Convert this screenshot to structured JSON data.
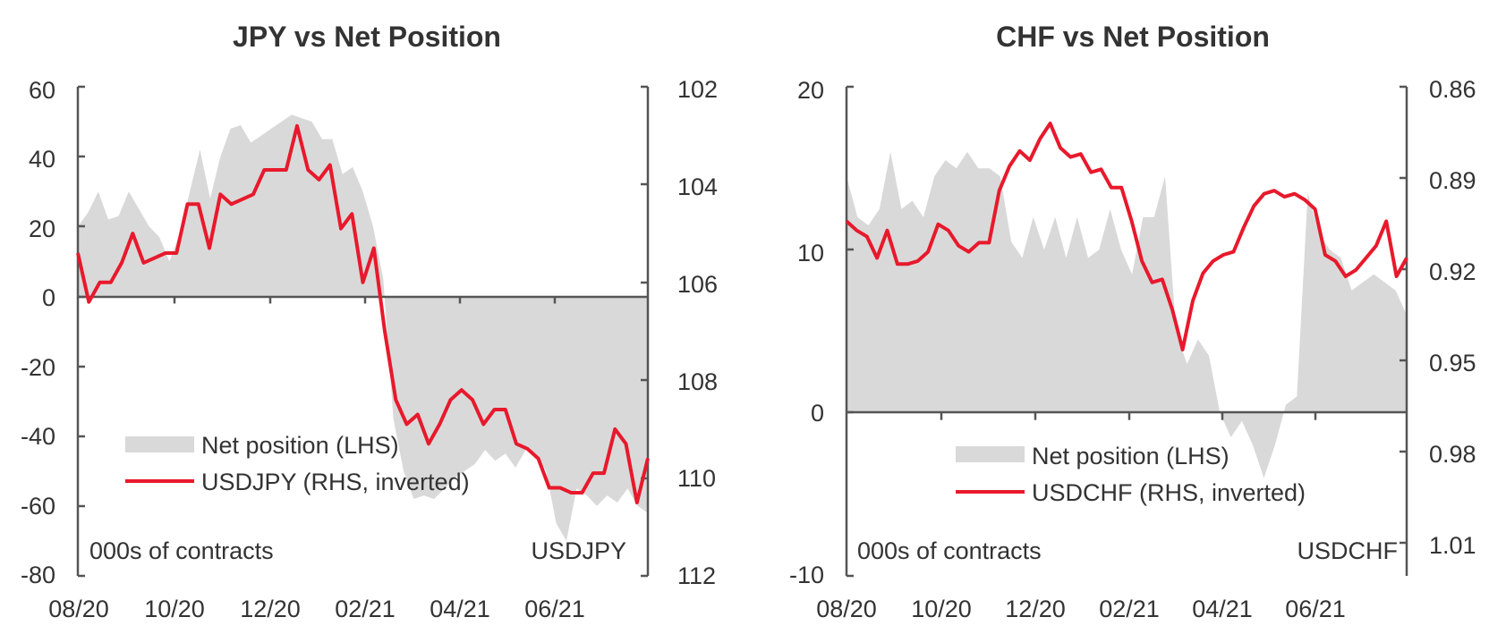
{
  "chart_data": [
    {
      "type": "area+line",
      "title": "JPY vs Net Position",
      "x_tick_labels": [
        "08/20",
        "10/20",
        "12/20",
        "02/21",
        "04/21",
        "06/21"
      ],
      "left_axis": {
        "ylim": [
          -80,
          60
        ],
        "ticks": [
          "60",
          "40",
          "20",
          "0",
          "-20",
          "-40",
          "-60",
          "-80"
        ]
      },
      "right_axis": {
        "ylim": [
          102,
          112
        ],
        "inverted": true,
        "ticks": [
          "102",
          "104",
          "106",
          "108",
          "110",
          "112"
        ]
      },
      "left_note": "000s of contracts",
      "right_note": "USDJPY",
      "legend": {
        "placement": "lower-left",
        "entries": [
          "Net position (LHS)",
          "USDJPY (RHS, inverted)"
        ]
      },
      "series": [
        {
          "name": "Net position (LHS)",
          "kind": "area",
          "axis": "left",
          "color": "#d9d9d9",
          "values": [
            20,
            24,
            30,
            22,
            23,
            30,
            25,
            20,
            17,
            10,
            18,
            30,
            42,
            28,
            40,
            48,
            49,
            44,
            46,
            48,
            50,
            52,
            51,
            50,
            45,
            45,
            35,
            37,
            30,
            20,
            5,
            -35,
            -50,
            -58,
            -57,
            -58,
            -55,
            -52,
            -50,
            -48,
            -44,
            -47,
            -45,
            -49,
            -44,
            -45,
            -50,
            -65,
            -70,
            -55,
            -57,
            -60,
            -57,
            -59,
            -55,
            -60,
            -62
          ]
        },
        {
          "name": "USDJPY (RHS, inverted)",
          "kind": "line",
          "axis": "right",
          "color": "#e8192c",
          "values": [
            105.4,
            106.4,
            106.0,
            106.0,
            105.6,
            105.0,
            105.6,
            105.5,
            105.4,
            105.4,
            104.4,
            104.4,
            105.3,
            104.2,
            104.4,
            104.3,
            104.2,
            103.7,
            103.7,
            103.7,
            102.8,
            103.7,
            103.9,
            103.6,
            104.9,
            104.6,
            106.0,
            105.3,
            107.0,
            108.4,
            108.9,
            108.7,
            109.3,
            108.9,
            108.4,
            108.2,
            108.4,
            108.9,
            108.6,
            108.6,
            109.3,
            109.4,
            109.6,
            110.2,
            110.2,
            110.3,
            110.3,
            109.9,
            109.9,
            109.0,
            109.3,
            110.5,
            109.6
          ]
        }
      ]
    },
    {
      "type": "area+line",
      "title": "CHF vs Net Position",
      "x_tick_labels": [
        "08/20",
        "10/20",
        "12/20",
        "02/21",
        "04/21",
        "06/21"
      ],
      "left_axis": {
        "ylim": [
          -10,
          20
        ],
        "ticks": [
          "20",
          "10",
          "0",
          "-10"
        ]
      },
      "right_axis": {
        "ylim": [
          0.86,
          1.02
        ],
        "inverted": true,
        "ticks": [
          "0.86",
          "0.89",
          "0.92",
          "0.95",
          "0.98",
          "1.01"
        ]
      },
      "left_note": "000s of contracts",
      "right_note": "USDCHF",
      "legend": {
        "placement": "lower-center",
        "entries": [
          "Net position (LHS)",
          "USDCHF (RHS, inverted)"
        ]
      },
      "series": [
        {
          "name": "Net position (LHS)",
          "kind": "area",
          "axis": "left",
          "color": "#d9d9d9",
          "values": [
            14.5,
            12.0,
            11.5,
            12.5,
            16.0,
            12.5,
            13.0,
            12.0,
            14.5,
            15.5,
            15.0,
            16.0,
            15.0,
            15.0,
            14.5,
            10.5,
            9.5,
            12.0,
            10.0,
            12.0,
            9.5,
            12.0,
            9.5,
            10.0,
            12.5,
            10.0,
            8.5,
            12.0,
            12.0,
            14.5,
            5.0,
            3.0,
            4.5,
            3.5,
            0.0,
            -1.5,
            -0.5,
            -2.0,
            -4.0,
            -2.0,
            0.5,
            1.0,
            13.5,
            11.0,
            10.0,
            9.5,
            7.5,
            8.0,
            8.5,
            8.0,
            7.5,
            6.0
          ]
        },
        {
          "name": "USDCHF (RHS, inverted)",
          "kind": "line",
          "axis": "right",
          "color": "#e8192c",
          "values": [
            0.904,
            0.907,
            0.909,
            0.916,
            0.907,
            0.918,
            0.918,
            0.917,
            0.914,
            0.905,
            0.907,
            0.912,
            0.914,
            0.911,
            0.911,
            0.894,
            0.886,
            0.881,
            0.884,
            0.877,
            0.872,
            0.88,
            0.883,
            0.882,
            0.888,
            0.887,
            0.893,
            0.893,
            0.904,
            0.917,
            0.924,
            0.923,
            0.933,
            0.946,
            0.93,
            0.921,
            0.917,
            0.915,
            0.914,
            0.906,
            0.899,
            0.895,
            0.894,
            0.896,
            0.895,
            0.897,
            0.9,
            0.915,
            0.917,
            0.922,
            0.92,
            0.916,
            0.912,
            0.904,
            0.922,
            0.916
          ]
        }
      ]
    }
  ]
}
